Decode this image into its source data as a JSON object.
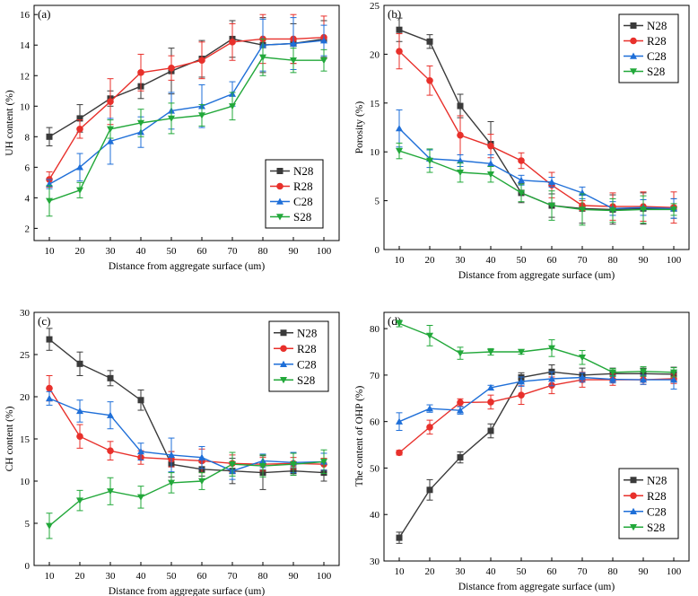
{
  "colors": {
    "N28": "#3a3a3a",
    "R28": "#e8302b",
    "C28": "#1f6fd8",
    "S28": "#22a83a"
  },
  "chart_data": [
    {
      "type": "line",
      "panel": "(a)",
      "xlabel": "Distance from aggregate surface (um)",
      "ylabel": "UH content (%)",
      "x": [
        10,
        20,
        30,
        40,
        50,
        60,
        70,
        80,
        90,
        100
      ],
      "xticks": [
        10,
        20,
        30,
        40,
        50,
        60,
        70,
        80,
        90,
        100
      ],
      "xlim": [
        5,
        105
      ],
      "ylim": [
        1.2,
        16.6
      ],
      "yticks": [
        2,
        4,
        6,
        8,
        10,
        12,
        14,
        16
      ],
      "legend": "bottom-right",
      "series": [
        {
          "name": "N28",
          "marker": "square",
          "values": [
            8.0,
            9.2,
            10.5,
            11.3,
            12.3,
            13.1,
            14.4,
            14.0,
            14.1,
            14.4
          ],
          "err": [
            0.6,
            0.9,
            0.5,
            0.8,
            1.5,
            1.2,
            1.2,
            1.8,
            1.3,
            1.2
          ]
        },
        {
          "name": "R28",
          "marker": "circle",
          "values": [
            5.2,
            8.5,
            10.3,
            12.2,
            12.5,
            13.0,
            14.2,
            14.4,
            14.4,
            14.5
          ],
          "err": [
            0.5,
            0.6,
            1.5,
            1.2,
            0.8,
            1.2,
            1.2,
            1.6,
            1.6,
            1.4
          ]
        },
        {
          "name": "C28",
          "marker": "triangle-up",
          "values": [
            4.9,
            6.0,
            7.7,
            8.3,
            9.7,
            10.0,
            10.8,
            14.0,
            14.1,
            14.3
          ],
          "err": [
            0.3,
            0.9,
            1.5,
            1.0,
            1.2,
            1.4,
            0.8,
            1.7,
            1.7,
            1.0
          ]
        },
        {
          "name": "S28",
          "marker": "triangle-down",
          "values": [
            3.8,
            4.5,
            8.5,
            8.9,
            9.2,
            9.4,
            10.0,
            13.2,
            13.0,
            13.0
          ],
          "err": [
            1.0,
            0.5,
            0.6,
            0.9,
            1.0,
            0.7,
            0.9,
            1.2,
            0.8,
            0.7
          ]
        }
      ]
    },
    {
      "type": "line",
      "panel": "(b)",
      "xlabel": "Distance from aggregate surface (um)",
      "ylabel": "Porosity (%)",
      "x": [
        10,
        20,
        30,
        40,
        50,
        60,
        70,
        80,
        90,
        100
      ],
      "xticks": [
        10,
        20,
        30,
        40,
        50,
        60,
        70,
        80,
        90,
        100
      ],
      "xlim": [
        5,
        105
      ],
      "ylim": [
        0,
        25
      ],
      "yticks": [
        0,
        5,
        10,
        15,
        20,
        25
      ],
      "legend": "top-right",
      "series": [
        {
          "name": "N28",
          "marker": "square",
          "values": [
            22.5,
            21.3,
            14.7,
            10.8,
            5.8,
            4.5,
            4.2,
            4.1,
            4.2,
            4.2
          ],
          "err": [
            1.2,
            0.7,
            1.2,
            2.3,
            1.0,
            1.2,
            1.5,
            1.5,
            1.6,
            1.0
          ]
        },
        {
          "name": "R28",
          "marker": "circle",
          "values": [
            20.3,
            17.3,
            11.7,
            10.6,
            9.1,
            6.6,
            4.5,
            4.4,
            4.4,
            4.3
          ],
          "err": [
            1.8,
            1.5,
            2.0,
            1.2,
            0.8,
            1.3,
            0.5,
            1.4,
            1.5,
            1.6
          ]
        },
        {
          "name": "C28",
          "marker": "triangle-up",
          "values": [
            12.4,
            9.3,
            9.1,
            8.8,
            7.1,
            6.9,
            5.8,
            4.2,
            4.3,
            4.2
          ],
          "err": [
            1.9,
            0.9,
            0.6,
            0.9,
            0.5,
            0.5,
            0.6,
            0.7,
            0.8,
            1.0
          ]
        },
        {
          "name": "S28",
          "marker": "triangle-down",
          "values": [
            10.1,
            9.1,
            7.9,
            7.7,
            5.8,
            4.5,
            4.1,
            4.0,
            4.1,
            4.1
          ],
          "err": [
            0.8,
            1.2,
            1.0,
            0.8,
            0.9,
            1.5,
            1.6,
            1.2,
            1.4,
            0.6
          ]
        }
      ]
    },
    {
      "type": "line",
      "panel": "(c)",
      "xlabel": "Distance from aggregate surface (um)",
      "ylabel": "CH content (%)",
      "x": [
        10,
        20,
        30,
        40,
        50,
        60,
        70,
        80,
        90,
        100
      ],
      "xticks": [
        10,
        20,
        30,
        40,
        50,
        60,
        70,
        80,
        90,
        100
      ],
      "xlim": [
        5,
        105
      ],
      "ylim": [
        0,
        30
      ],
      "yticks": [
        0,
        5,
        10,
        15,
        20,
        25,
        30
      ],
      "legend": "top-right",
      "series": [
        {
          "name": "N28",
          "marker": "square",
          "values": [
            26.8,
            23.9,
            22.2,
            19.6,
            12.0,
            11.4,
            11.2,
            11.0,
            11.2,
            11.0
          ],
          "err": [
            1.3,
            1.4,
            0.9,
            1.2,
            1.5,
            0.8,
            1.5,
            2.0,
            0.5,
            1.0
          ]
        },
        {
          "name": "R28",
          "marker": "circle",
          "values": [
            21.0,
            15.3,
            13.6,
            12.8,
            12.6,
            12.4,
            12.1,
            12.0,
            12.1,
            12.0
          ],
          "err": [
            1.5,
            1.4,
            1.1,
            0.8,
            0.9,
            1.4,
            1.0,
            0.8,
            0.7,
            0.7
          ]
        },
        {
          "name": "C28",
          "marker": "triangle-up",
          "values": [
            19.8,
            18.3,
            17.8,
            13.5,
            13.1,
            12.8,
            11.2,
            12.4,
            12.2,
            12.3
          ],
          "err": [
            0.8,
            1.3,
            1.6,
            1.0,
            2.0,
            1.3,
            1.0,
            0.8,
            1.2,
            1.0
          ]
        },
        {
          "name": "S28",
          "marker": "triangle-down",
          "values": [
            4.7,
            7.7,
            8.8,
            8.1,
            9.8,
            10.0,
            12.0,
            11.8,
            12.0,
            12.3
          ],
          "err": [
            1.5,
            1.2,
            1.6,
            1.3,
            1.2,
            1.0,
            1.4,
            1.3,
            1.3,
            1.4
          ]
        }
      ]
    },
    {
      "type": "line",
      "panel": "(d)",
      "xlabel": "Distance from aggregate surface (um)",
      "ylabel": "The content of OHP (%)",
      "x": [
        10,
        20,
        30,
        40,
        50,
        60,
        70,
        80,
        90,
        100
      ],
      "xticks": [
        10,
        20,
        30,
        40,
        50,
        60,
        70,
        80,
        90,
        100
      ],
      "xlim": [
        5,
        105
      ],
      "ylim": [
        30,
        83.5
      ],
      "yticks": [
        30,
        40,
        50,
        60,
        70,
        80
      ],
      "legend": "bottom-right",
      "series": [
        {
          "name": "N28",
          "marker": "square",
          "values": [
            35.0,
            45.3,
            52.3,
            58.0,
            69.5,
            70.7,
            70.0,
            70.3,
            70.3,
            70.2
          ],
          "err": [
            1.2,
            2.2,
            1.2,
            1.5,
            1.0,
            1.5,
            1.5,
            1.2,
            1.2,
            1.5
          ]
        },
        {
          "name": "R28",
          "marker": "circle",
          "values": [
            53.3,
            58.8,
            64.1,
            64.2,
            65.7,
            67.8,
            69.0,
            69.0,
            69.0,
            69.2
          ],
          "err": [
            0.5,
            1.5,
            0.8,
            1.5,
            2.0,
            1.8,
            1.6,
            1.2,
            1.0,
            1.0
          ]
        },
        {
          "name": "C28",
          "marker": "triangle-up",
          "values": [
            60.0,
            62.8,
            62.4,
            67.3,
            68.6,
            69.2,
            69.5,
            69.1,
            69.0,
            69.0
          ],
          "err": [
            1.9,
            0.8,
            0.8,
            0.5,
            1.0,
            1.5,
            1.0,
            0.8,
            1.0,
            2.0
          ]
        },
        {
          "name": "S28",
          "marker": "triangle-down",
          "values": [
            81.1,
            78.5,
            74.7,
            75.0,
            75.0,
            75.8,
            73.8,
            70.6,
            70.8,
            70.6
          ],
          "err": [
            0.7,
            2.2,
            1.3,
            0.7,
            0.5,
            1.8,
            1.5,
            0.8,
            1.0,
            1.0
          ]
        }
      ]
    }
  ]
}
